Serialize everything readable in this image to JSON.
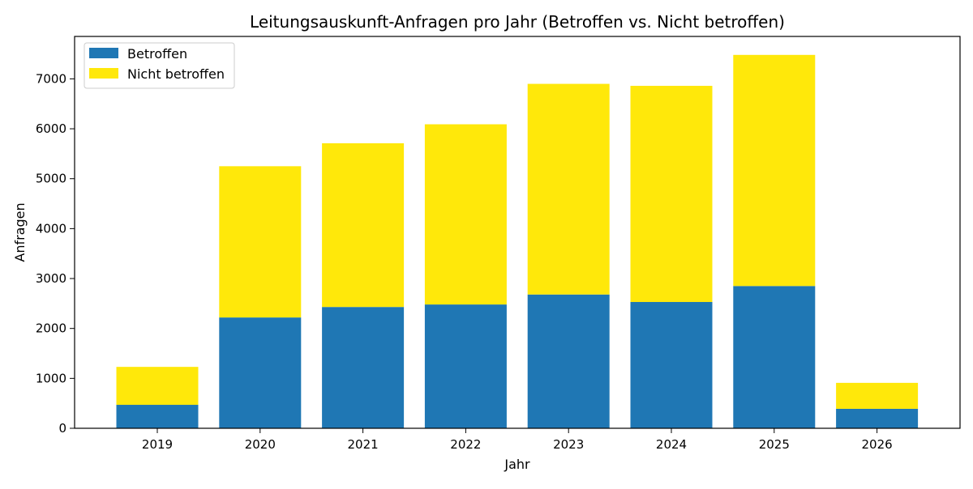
{
  "chart_data": {
    "type": "bar",
    "stacked": true,
    "title": "Leitungsauskunft-Anfragen pro Jahr (Betroffen vs. Nicht betroffen)",
    "xlabel": "Jahr",
    "ylabel": "Anfragen",
    "categories": [
      "2019",
      "2020",
      "2021",
      "2022",
      "2023",
      "2024",
      "2025",
      "2026"
    ],
    "series": [
      {
        "name": "Betroffen",
        "color": "#1f77b4",
        "values": [
          470,
          2220,
          2430,
          2480,
          2680,
          2530,
          2850,
          390
        ]
      },
      {
        "name": "Nicht betroffen",
        "color": "#ffe80a",
        "values": [
          760,
          3030,
          3280,
          3610,
          4220,
          4330,
          4630,
          520
        ]
      }
    ],
    "ylim": [
      0,
      7850
    ],
    "yticks": [
      "0",
      "1000",
      "2000",
      "3000",
      "4000",
      "5000",
      "6000",
      "7000"
    ],
    "legend_position": "top-left",
    "grid": false
  }
}
